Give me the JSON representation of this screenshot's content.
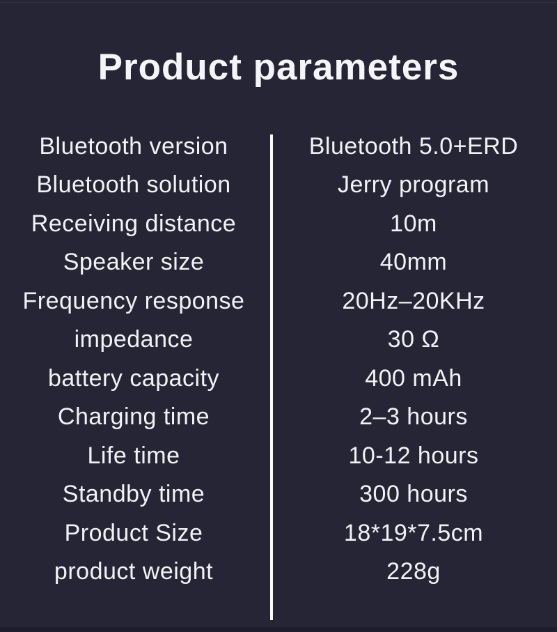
{
  "title": "Product parameters",
  "colors": {
    "background": "#262535",
    "text": "#f2f2f4",
    "divider": "#fafafa"
  },
  "spec_table": {
    "rows": [
      {
        "label": "Bluetooth version",
        "value": "Bluetooth 5.0+ERD"
      },
      {
        "label": "Bluetooth solution",
        "value": "Jerry program"
      },
      {
        "label": "Receiving distance",
        "value": "10m"
      },
      {
        "label": "Speaker size",
        "value": "40mm"
      },
      {
        "label": "Frequency response",
        "value": "20Hz–20KHz"
      },
      {
        "label": "impedance",
        "value": "30 Ω"
      },
      {
        "label": "battery capacity",
        "value": "400 mAh"
      },
      {
        "label": "Charging time",
        "value": "2–3 hours"
      },
      {
        "label": "Life time",
        "value": "10-12 hours"
      },
      {
        "label": "Standby time",
        "value": "300 hours"
      },
      {
        "label": "Product Size",
        "value": "18*19*7.5cm"
      },
      {
        "label": "product weight",
        "value": "228g"
      }
    ]
  }
}
